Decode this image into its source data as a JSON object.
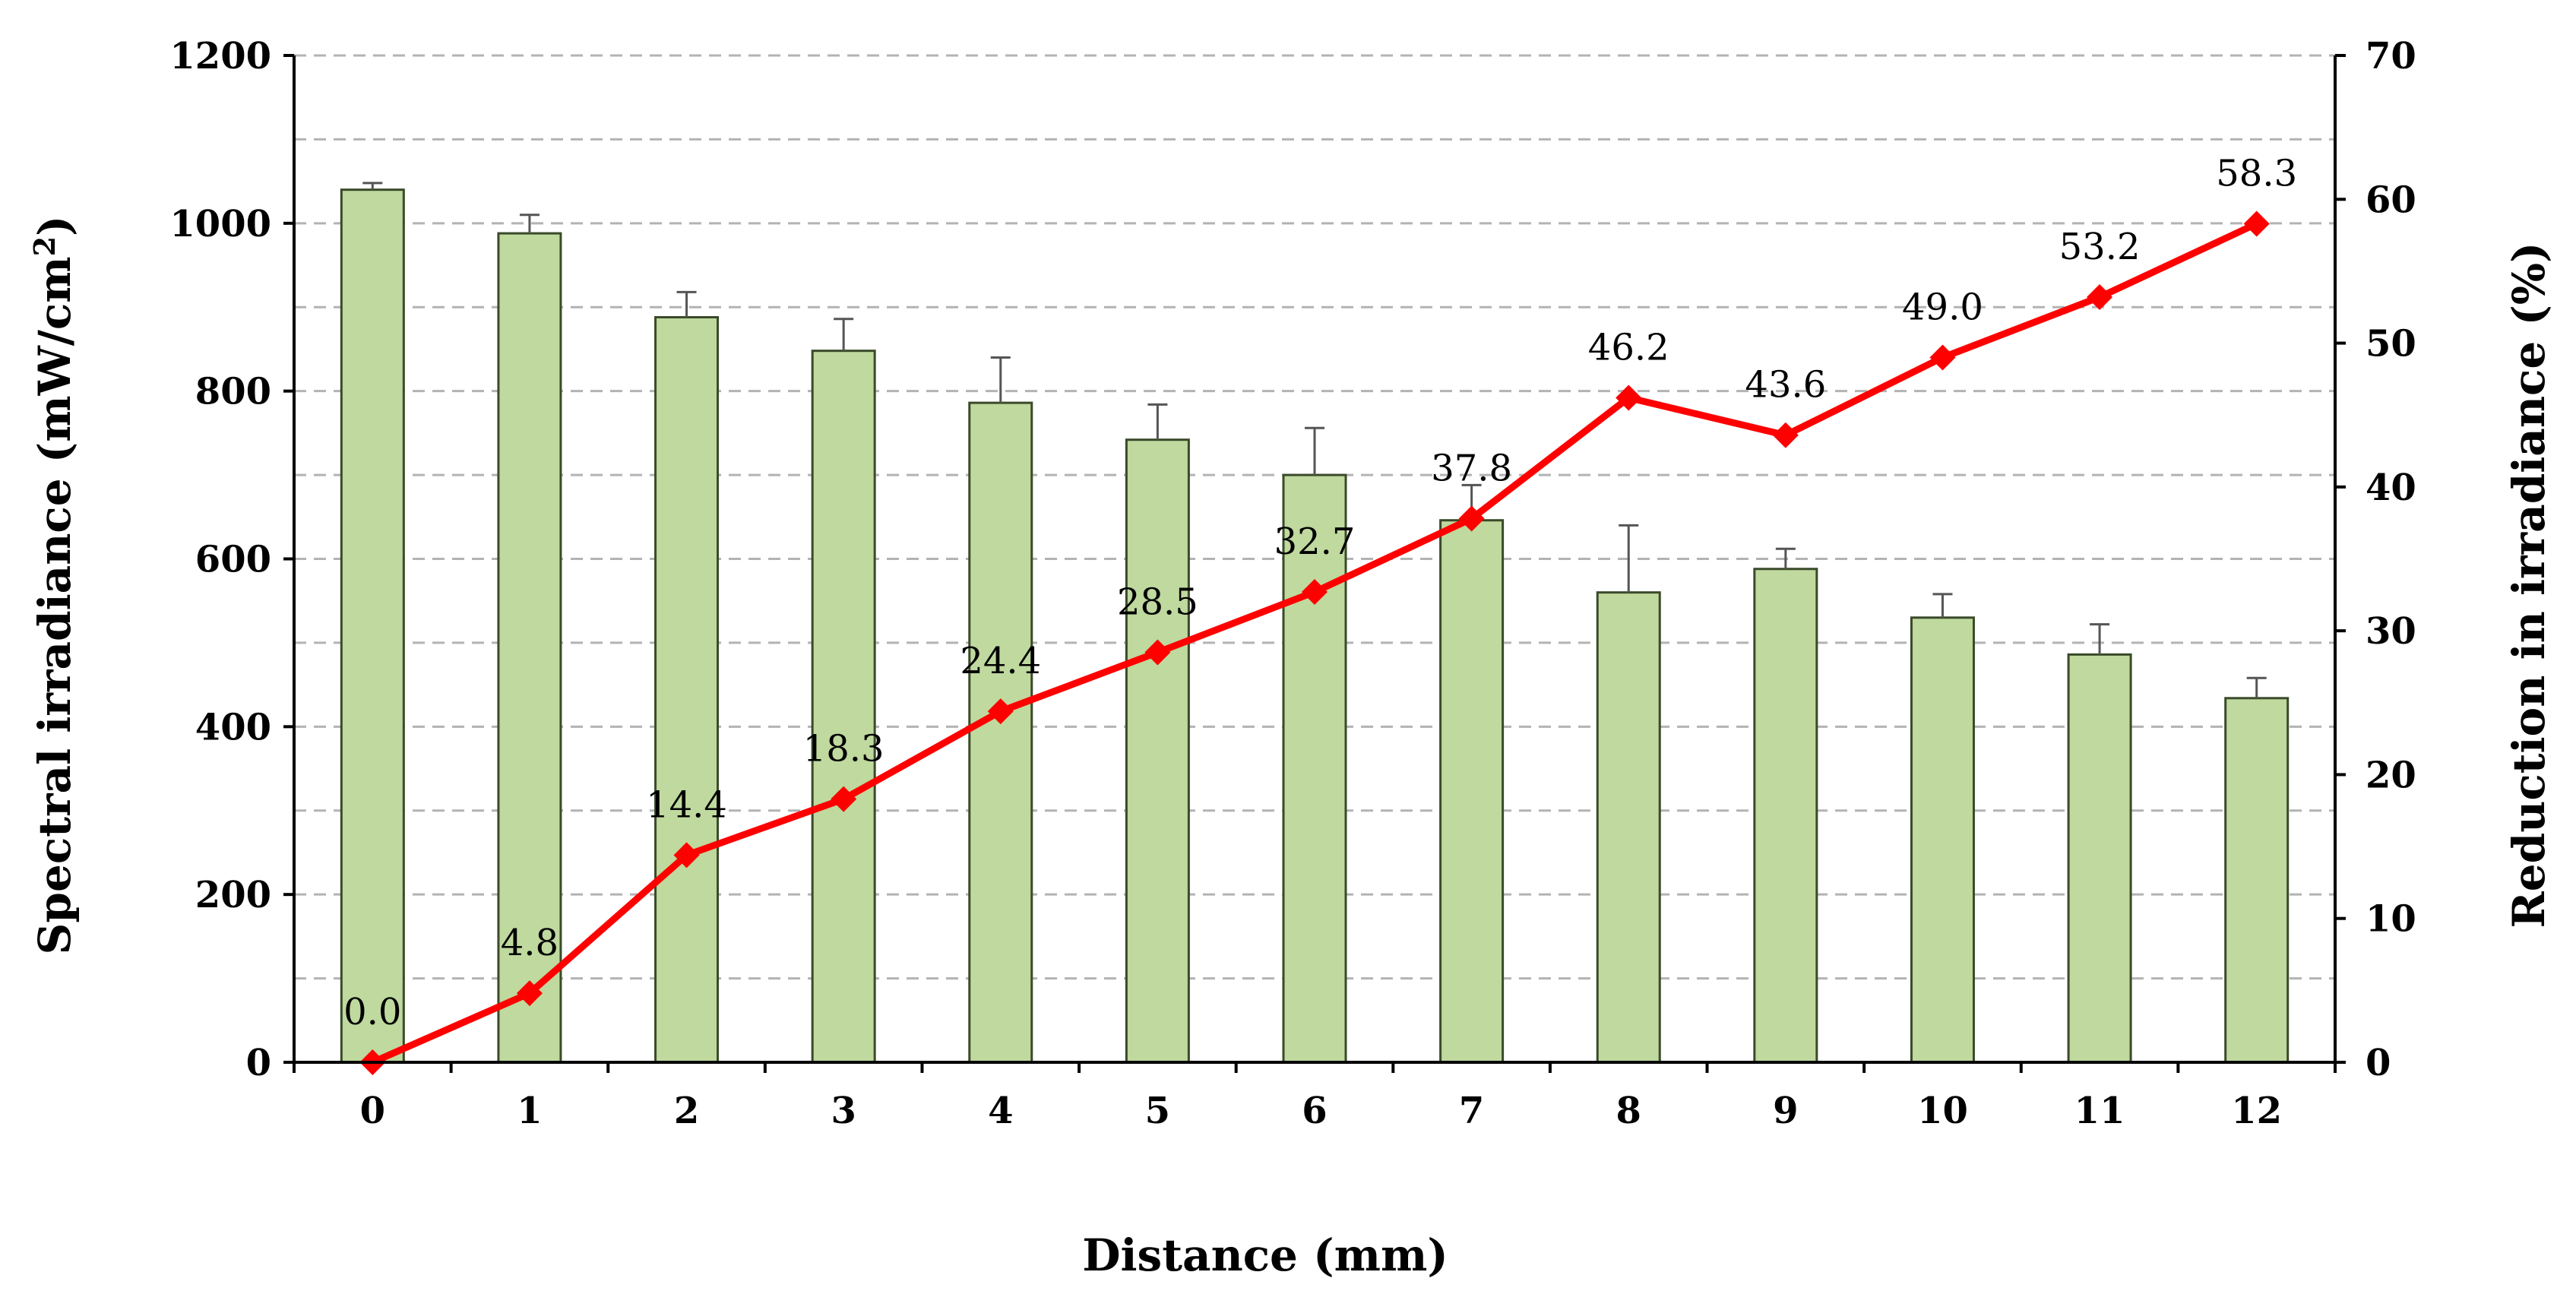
{
  "chart_data": {
    "type": "bar",
    "categories": [
      "0",
      "1",
      "2",
      "3",
      "4",
      "5",
      "6",
      "7",
      "8",
      "9",
      "10",
      "11",
      "12"
    ],
    "series": [
      {
        "type": "bar",
        "axis": "left",
        "values": [
          1040,
          988,
          888,
          848,
          786,
          742,
          700,
          646,
          560,
          588,
          530,
          486,
          434
        ],
        "errors": [
          8,
          22,
          30,
          38,
          54,
          42,
          56,
          42,
          80,
          24,
          28,
          36,
          24
        ],
        "color": "#bfd99e",
        "edge_color": "#3a4a2a"
      },
      {
        "type": "line",
        "axis": "right",
        "values": [
          0.0,
          4.8,
          14.4,
          18.3,
          24.4,
          28.5,
          32.7,
          37.8,
          46.2,
          43.6,
          49.0,
          53.2,
          58.3
        ],
        "labels": [
          "0.0",
          "4.8",
          "14.4",
          "18.3",
          "24.4",
          "28.5",
          "32.7",
          "37.8",
          "46.2",
          "43.6",
          "49.0",
          "53.2",
          "58.3"
        ],
        "color": "#ff0000",
        "marker": "diamond"
      }
    ],
    "xlabel": "Distance (mm)",
    "ylabel_left": "Spectral irradiance (mW/cm",
    "ylabel_left_sup": "2",
    "ylabel_left_end": ")",
    "ylabel_right": "Reduction in irradiance (%)",
    "ylim_left": [
      0,
      1200
    ],
    "yticks_left": [
      0,
      200,
      400,
      600,
      800,
      1000,
      1200
    ],
    "ylim_right": [
      0,
      70
    ],
    "yticks_right": [
      0,
      10,
      20,
      30,
      40,
      50,
      60,
      70
    ],
    "grid": "dashed-horizontal",
    "grid_step_left": 100
  }
}
